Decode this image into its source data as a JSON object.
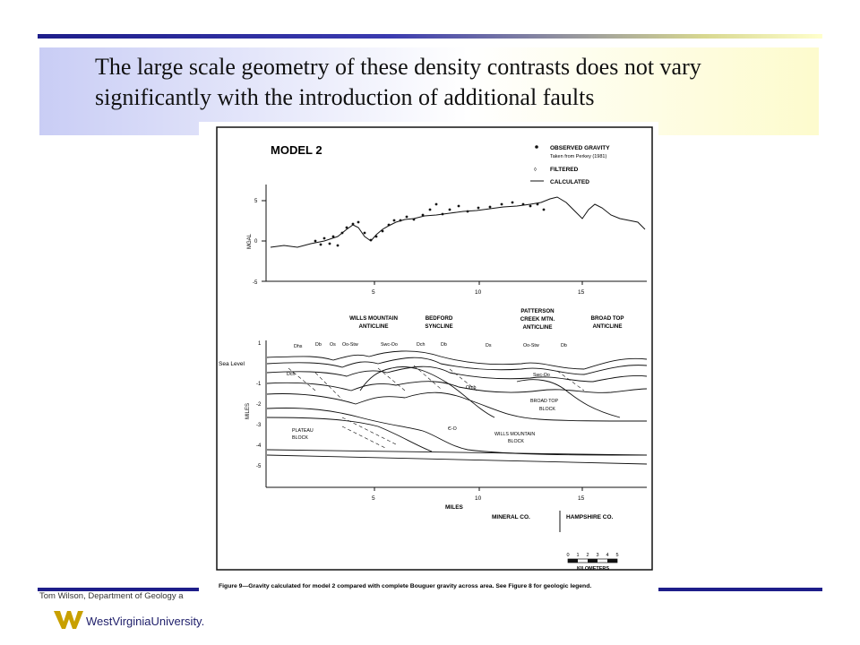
{
  "slide": {
    "title": "The large scale geometry of these density contrasts does not vary significantly with the introduction of additional faults",
    "footer": "Tom Wilson, Department of Geology a",
    "logo_text": "WestVirginiaUniversity.",
    "colors": {
      "accent": "#1e1e8a",
      "gold": "#c8a000"
    }
  },
  "figure": {
    "model_title": "MODEL 2",
    "legend": {
      "observed": "OBSERVED GRAVITY",
      "observed_note": "Taken from Perkey (1981)",
      "filtered": "FILTERED",
      "calculated": "CALCULATED"
    },
    "gravity": {
      "ylabel": "MGAL",
      "yticks": [
        "5",
        "0",
        "-5"
      ],
      "xticks": [
        "5",
        "10",
        "15"
      ]
    },
    "structures": [
      {
        "line1": "",
        "line2": "WILLS MOUNTAIN",
        "line3": "ANTICLINE"
      },
      {
        "line1": "",
        "line2": "BEDFORD",
        "line3": "SYNCLINE"
      },
      {
        "line1": "PATTERSON",
        "line2": "CREEK MTN.",
        "line3": "ANTICLINE"
      },
      {
        "line1": "",
        "line2": "BROAD TOP",
        "line3": "ANTICLINE"
      }
    ],
    "section": {
      "ylabel": "MILES",
      "yticks": [
        "1",
        "Sea Level",
        "-1",
        "-2",
        "-3",
        "-4",
        "-5"
      ],
      "xticks": [
        "5",
        "10",
        "15"
      ],
      "xlabel": "MILES",
      "units": [
        "Dhs",
        "Db",
        "Os",
        "Oo-Stw",
        "Swc-Oo",
        "Dch",
        "Db",
        "Ds",
        "Oo-Stw",
        "Db",
        "Dch",
        "Swc-Oo",
        "Omb",
        "BROAD TOP",
        "BLOCK",
        "PLATEAU",
        "BLOCK",
        "Є-O",
        "WILLS MOUNTAIN",
        "BLOCK"
      ]
    },
    "counties": {
      "left": "MINERAL CO.",
      "right": "HAMPSHIRE CO."
    },
    "scale": {
      "ticks": [
        "0",
        "1",
        "2",
        "3",
        "4",
        "5"
      ],
      "label": "KILOMETERS"
    },
    "caption": "Figure 9—Gravity calculated for model 2 compared with complete Bouguer gravity across area. See Figure 8 for geologic legend."
  }
}
